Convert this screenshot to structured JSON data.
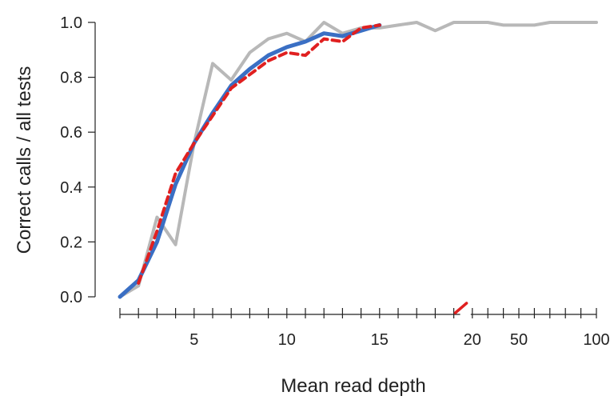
{
  "chart_data": {
    "type": "line",
    "xlabel": "Mean read depth",
    "ylabel": "Correct calls / all tests",
    "ylim": [
      0,
      1
    ],
    "y_ticks": [
      0.0,
      0.2,
      0.4,
      0.6,
      0.8,
      1.0
    ],
    "y_tick_labels": [
      "0.0",
      "0.2",
      "0.4",
      "0.6",
      "0.8",
      "1.0"
    ],
    "x_scale": "linear from 1 to 15, axis break, then compressed from 16 to 100",
    "x_ticks": [
      1,
      2,
      3,
      4,
      5,
      6,
      7,
      8,
      9,
      10,
      11,
      12,
      13,
      14,
      15,
      16,
      17,
      18,
      19,
      20,
      30,
      40,
      50,
      60,
      70,
      80,
      90,
      100
    ],
    "x_tick_labels": [
      {
        "value": 5,
        "label": "5"
      },
      {
        "value": 10,
        "label": "10"
      },
      {
        "value": 15,
        "label": "15"
      },
      {
        "value": 20,
        "label": "20"
      },
      {
        "value": 50,
        "label": "50"
      },
      {
        "value": 100,
        "label": "100"
      }
    ],
    "axis_break_color": "#e02020",
    "grid": false,
    "series": [
      {
        "color": "#b8b8b8",
        "style": "solid",
        "x": [
          1,
          2,
          3,
          4,
          5,
          6,
          7,
          8,
          9,
          10,
          11,
          12,
          13,
          14,
          15,
          16,
          17,
          18,
          19,
          20,
          30,
          40,
          50,
          60,
          70,
          80,
          90,
          100
        ],
        "y": [
          0.0,
          0.04,
          0.29,
          0.19,
          0.56,
          0.85,
          0.79,
          0.89,
          0.94,
          0.96,
          0.93,
          1.0,
          0.96,
          0.98,
          0.98,
          0.99,
          1.0,
          0.97,
          1.0,
          1.0,
          1.0,
          0.99,
          0.99,
          0.99,
          1.0,
          1.0,
          1.0,
          1.0
        ]
      },
      {
        "color": "#3a6fc4",
        "style": "solid",
        "x": [
          1,
          2,
          3,
          4,
          5,
          6,
          7,
          8,
          9,
          10,
          11,
          12,
          13,
          14,
          15
        ],
        "y": [
          0.0,
          0.06,
          0.2,
          0.41,
          0.56,
          0.67,
          0.77,
          0.83,
          0.88,
          0.91,
          0.93,
          0.96,
          0.95,
          0.97,
          0.99
        ]
      },
      {
        "color": "#e02020",
        "style": "dashed",
        "x": [
          2,
          3,
          4,
          5,
          6,
          7,
          8,
          9,
          10,
          11,
          12,
          13,
          14,
          15
        ],
        "y": [
          0.05,
          0.24,
          0.45,
          0.56,
          0.66,
          0.76,
          0.81,
          0.86,
          0.89,
          0.88,
          0.94,
          0.93,
          0.98,
          0.99
        ]
      }
    ]
  }
}
